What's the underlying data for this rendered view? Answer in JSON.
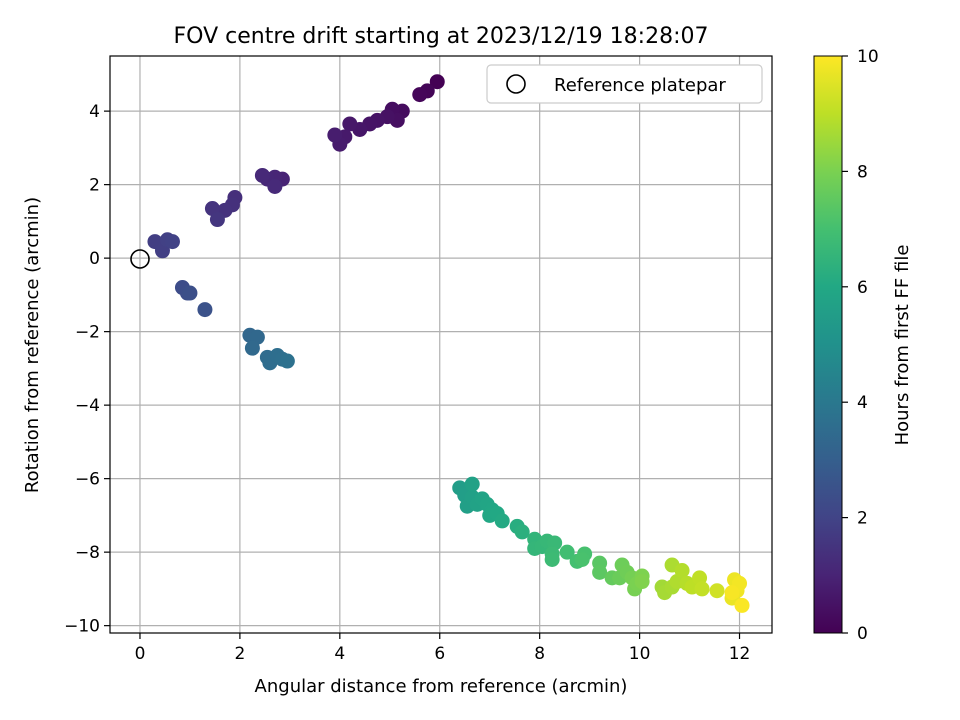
{
  "chart_data": {
    "type": "scatter",
    "title": "FOV centre drift starting at 2023/12/19 18:28:07",
    "xlabel": "Angular distance from reference (arcmin)",
    "ylabel": "Rotation from reference (arcmin)",
    "xlim": [
      -0.6,
      12.65
    ],
    "ylim": [
      -10.2,
      5.5
    ],
    "xticks": [
      0,
      2,
      4,
      6,
      8,
      10,
      12
    ],
    "yticks": [
      -10,
      -8,
      -6,
      -4,
      -2,
      0,
      2,
      4
    ],
    "grid": true,
    "legend": {
      "placement": "top-right",
      "entries": [
        "Reference platepar"
      ]
    },
    "colorbar": {
      "label": "Hours from first FF file",
      "range": [
        0,
        10
      ],
      "ticks": [
        0,
        2,
        4,
        6,
        8,
        10
      ],
      "colormap": "viridis"
    },
    "reference_point": {
      "x": 0,
      "y": 0
    },
    "series": [
      {
        "fields": [
          "x",
          "y",
          "hours"
        ],
        "points": [
          [
            5.95,
            4.8,
            0.0
          ],
          [
            5.75,
            4.55,
            0.1
          ],
          [
            5.6,
            4.45,
            0.15
          ],
          [
            5.25,
            4.0,
            0.3
          ],
          [
            5.05,
            4.05,
            0.35
          ],
          [
            5.15,
            3.75,
            0.4
          ],
          [
            4.95,
            3.85,
            0.45
          ],
          [
            4.75,
            3.75,
            0.5
          ],
          [
            4.6,
            3.65,
            0.55
          ],
          [
            4.4,
            3.5,
            0.6
          ],
          [
            4.2,
            3.65,
            0.65
          ],
          [
            4.1,
            3.3,
            0.7
          ],
          [
            4.0,
            3.1,
            0.75
          ],
          [
            3.9,
            3.35,
            0.8
          ],
          [
            2.85,
            2.15,
            1.0
          ],
          [
            2.7,
            2.2,
            1.05
          ],
          [
            2.55,
            2.15,
            1.1
          ],
          [
            2.45,
            2.25,
            1.15
          ],
          [
            2.7,
            1.95,
            1.2
          ],
          [
            1.9,
            1.65,
            1.35
          ],
          [
            1.85,
            1.45,
            1.4
          ],
          [
            1.7,
            1.3,
            1.45
          ],
          [
            1.45,
            1.35,
            1.5
          ],
          [
            1.55,
            1.05,
            1.55
          ],
          [
            0.3,
            0.45,
            1.8
          ],
          [
            0.45,
            0.2,
            1.85
          ],
          [
            0.55,
            0.5,
            1.9
          ],
          [
            0.65,
            0.45,
            1.95
          ],
          [
            0.85,
            -0.8,
            2.3
          ],
          [
            0.95,
            -0.95,
            2.35
          ],
          [
            1.0,
            -0.95,
            2.4
          ],
          [
            1.3,
            -1.4,
            2.5
          ],
          [
            2.2,
            -2.1,
            3.3
          ],
          [
            2.35,
            -2.15,
            3.35
          ],
          [
            2.25,
            -2.45,
            3.4
          ],
          [
            2.55,
            -2.7,
            3.5
          ],
          [
            2.6,
            -2.85,
            3.55
          ],
          [
            2.75,
            -2.65,
            3.6
          ],
          [
            2.85,
            -2.75,
            3.65
          ],
          [
            2.95,
            -2.8,
            3.7
          ],
          [
            6.4,
            -6.25,
            5.5
          ],
          [
            6.5,
            -6.45,
            5.55
          ],
          [
            6.55,
            -6.75,
            5.6
          ],
          [
            6.65,
            -6.5,
            5.65
          ],
          [
            6.65,
            -6.15,
            5.7
          ],
          [
            6.75,
            -6.7,
            5.75
          ],
          [
            6.85,
            -6.55,
            5.8
          ],
          [
            6.95,
            -6.7,
            5.85
          ],
          [
            7.05,
            -6.85,
            5.9
          ],
          [
            7.0,
            -7.0,
            5.95
          ],
          [
            7.15,
            -6.95,
            6.0
          ],
          [
            7.25,
            -7.15,
            6.05
          ],
          [
            7.55,
            -7.3,
            6.2
          ],
          [
            7.65,
            -7.45,
            6.3
          ],
          [
            7.9,
            -7.65,
            6.5
          ],
          [
            7.9,
            -7.9,
            6.55
          ],
          [
            8.05,
            -7.85,
            6.6
          ],
          [
            8.15,
            -7.7,
            6.65
          ],
          [
            8.3,
            -7.75,
            6.7
          ],
          [
            8.25,
            -8.05,
            6.75
          ],
          [
            8.25,
            -8.2,
            6.8
          ],
          [
            8.55,
            -8.0,
            6.9
          ],
          [
            8.75,
            -8.25,
            7.0
          ],
          [
            8.9,
            -8.05,
            7.05
          ],
          [
            8.85,
            -8.2,
            7.1
          ],
          [
            9.2,
            -8.3,
            7.4
          ],
          [
            9.2,
            -8.55,
            7.45
          ],
          [
            9.45,
            -8.7,
            7.6
          ],
          [
            9.6,
            -8.7,
            7.7
          ],
          [
            9.65,
            -8.35,
            7.75
          ],
          [
            9.75,
            -8.55,
            7.8
          ],
          [
            9.85,
            -8.7,
            7.9
          ],
          [
            9.9,
            -9.0,
            7.95
          ],
          [
            9.95,
            -8.85,
            8.0
          ],
          [
            10.05,
            -8.65,
            8.05
          ],
          [
            10.05,
            -8.8,
            8.1
          ],
          [
            10.45,
            -8.95,
            8.6
          ],
          [
            10.5,
            -9.1,
            8.65
          ],
          [
            10.65,
            -8.95,
            8.7
          ],
          [
            10.65,
            -8.35,
            8.75
          ],
          [
            10.75,
            -8.8,
            8.8
          ],
          [
            10.85,
            -8.5,
            8.85
          ],
          [
            10.95,
            -8.85,
            8.9
          ],
          [
            11.05,
            -8.95,
            9.0
          ],
          [
            11.2,
            -8.7,
            9.05
          ],
          [
            11.25,
            -9.0,
            9.1
          ],
          [
            11.55,
            -9.05,
            9.3
          ],
          [
            11.85,
            -9.25,
            9.7
          ],
          [
            11.9,
            -8.75,
            9.75
          ],
          [
            11.95,
            -9.05,
            9.8
          ],
          [
            12.0,
            -8.85,
            9.85
          ],
          [
            12.05,
            -9.45,
            9.95
          ],
          [
            11.85,
            -9.1,
            9.9
          ]
        ]
      }
    ]
  }
}
